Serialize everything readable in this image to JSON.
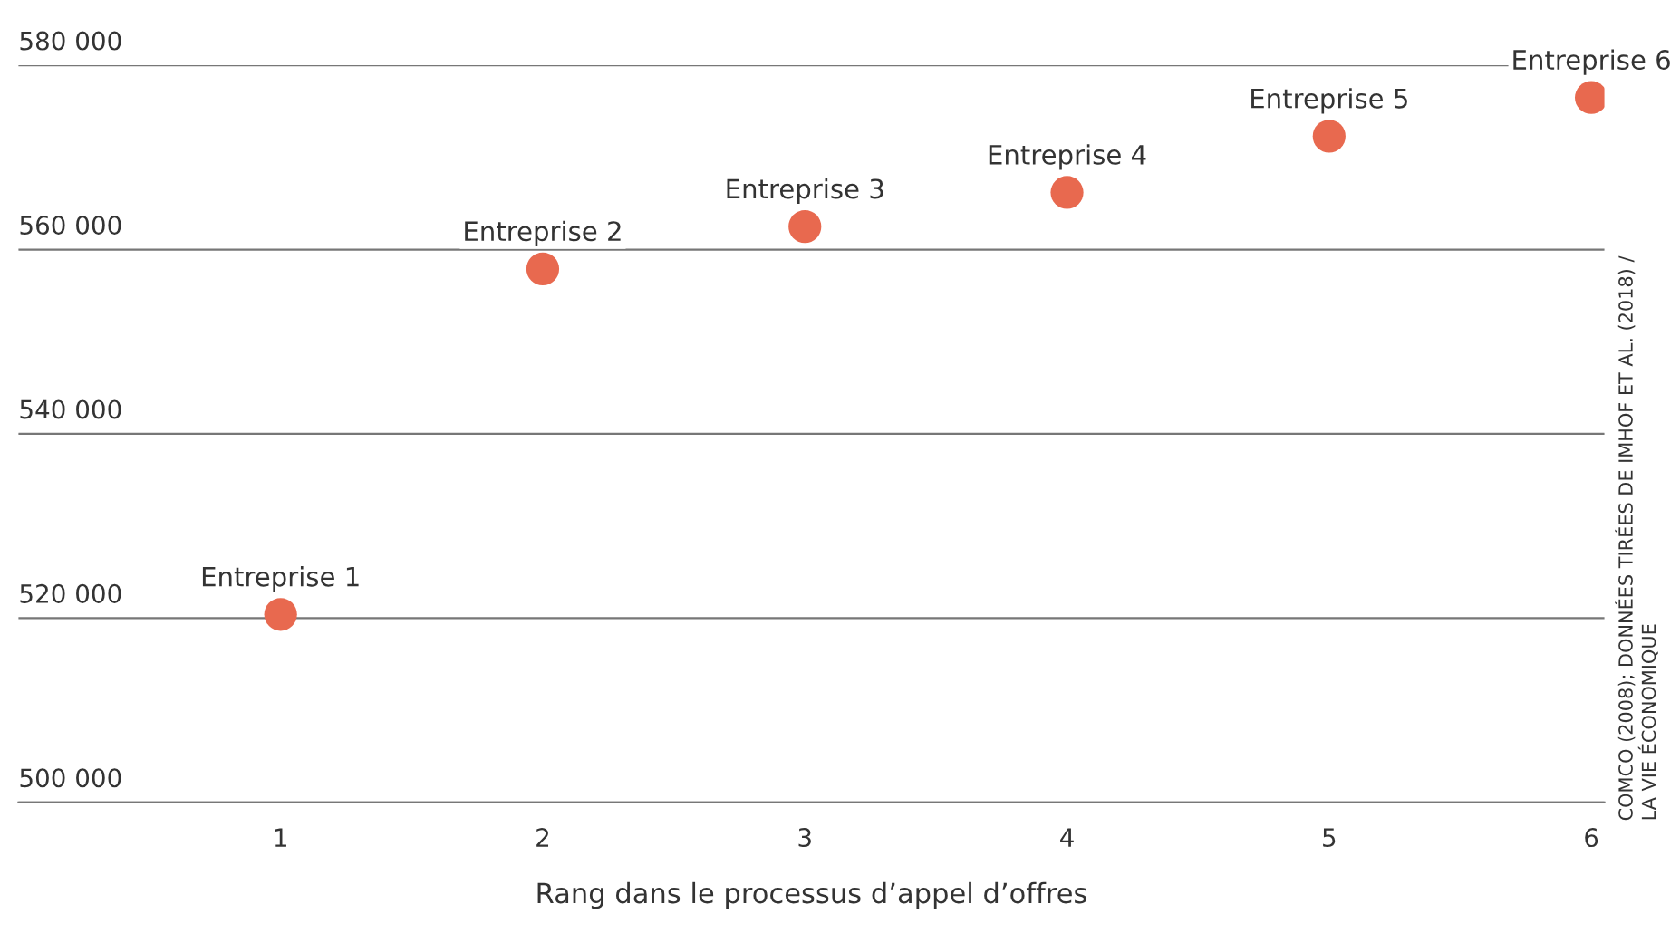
{
  "chart_data": {
    "type": "scatter",
    "xlabel": "Rang dans le processus d’appel d’offres",
    "x": [
      1,
      2,
      3,
      4,
      5,
      6
    ],
    "series": [
      {
        "color": "#e8694f",
        "values": [
          520400,
          557900,
          562500,
          566200,
          572300,
          576500
        ]
      }
    ],
    "xlim": [
      0,
      6.05
    ],
    "xticks": [
      1,
      2,
      3,
      4,
      5,
      6
    ],
    "ylim": [
      500000,
      580000
    ],
    "yticks": [
      {
        "value": 500000,
        "label": "500 000"
      },
      {
        "value": 520000,
        "label": "520 000"
      },
      {
        "value": 540000,
        "label": "540 000"
      },
      {
        "value": 560000,
        "label": "560 000"
      },
      {
        "value": 580000,
        "label": "580 000"
      }
    ],
    "grid": "y",
    "marker": "circle",
    "annotations": [
      {
        "text": "Entreprise 1",
        "x": 1,
        "y": 520400
      },
      {
        "text": "Entreprise 2",
        "x": 2,
        "y": 557900
      },
      {
        "text": "Entreprise 3",
        "x": 3,
        "y": 562500
      },
      {
        "text": "Entreprise 4",
        "x": 4,
        "y": 566200
      },
      {
        "text": "Entreprise 5",
        "x": 5,
        "y": 572300
      },
      {
        "text": "Entreprise 6",
        "x": 6,
        "y": 576500
      },
      "COMCO (2008); DONNÉES TIRÉES DE IMHOF ET AL. (2018) /\nLA VIE ÉCONOMIQUE"
    ]
  }
}
